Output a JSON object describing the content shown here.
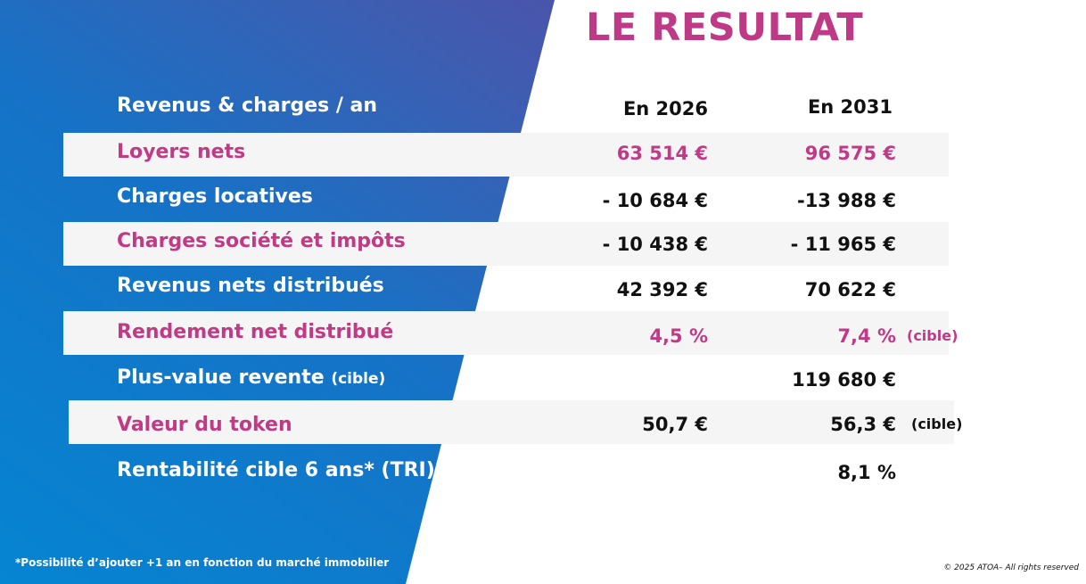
{
  "title": "LE RESULTAT",
  "header": {
    "label": "Revenus & charges / an",
    "col1": "En 2026",
    "col2": "En 2031"
  },
  "rows": [
    {
      "label": "Loyers nets",
      "v2026": "63 514 €",
      "v2031": "96 575 €",
      "note": ""
    },
    {
      "label": "Charges locatives",
      "v2026": "- 10 684 €",
      "v2031": "-13 988 €",
      "note": ""
    },
    {
      "label": "Charges société et impôts",
      "v2026": "- 10 438 €",
      "v2031": "- 11 965 €",
      "note": ""
    },
    {
      "label": "Revenus nets distribués",
      "v2026": "42 392 €",
      "v2031": "70 622 €",
      "note": ""
    },
    {
      "label": "Rendement net distribué",
      "v2026": "4,5 %",
      "v2031": "7,4 %",
      "note": "(cible)"
    },
    {
      "label": "Plus-value revente",
      "label_suffix": "(cible)",
      "v2026": "",
      "v2031": "119 680 €",
      "note": ""
    },
    {
      "label": "Valeur du token",
      "v2026": "50,7 €",
      "v2031": "56,3 €",
      "note": "(cible)"
    },
    {
      "label": "Rentabilité cible 6 ans* (TRI)",
      "v2026": "",
      "v2031": "8,1 %",
      "note": ""
    }
  ],
  "footnote": "*Possibilité d’ajouter +1 an en fonction du marché immobilier",
  "copyright": "© 2025 ATOA– All rights reserved",
  "colors": {
    "accent_pink": "#c03a86",
    "panel_blue": "#0585d2",
    "panel_purple": "#6d3b98",
    "band_gray": "#f5f5f6"
  }
}
